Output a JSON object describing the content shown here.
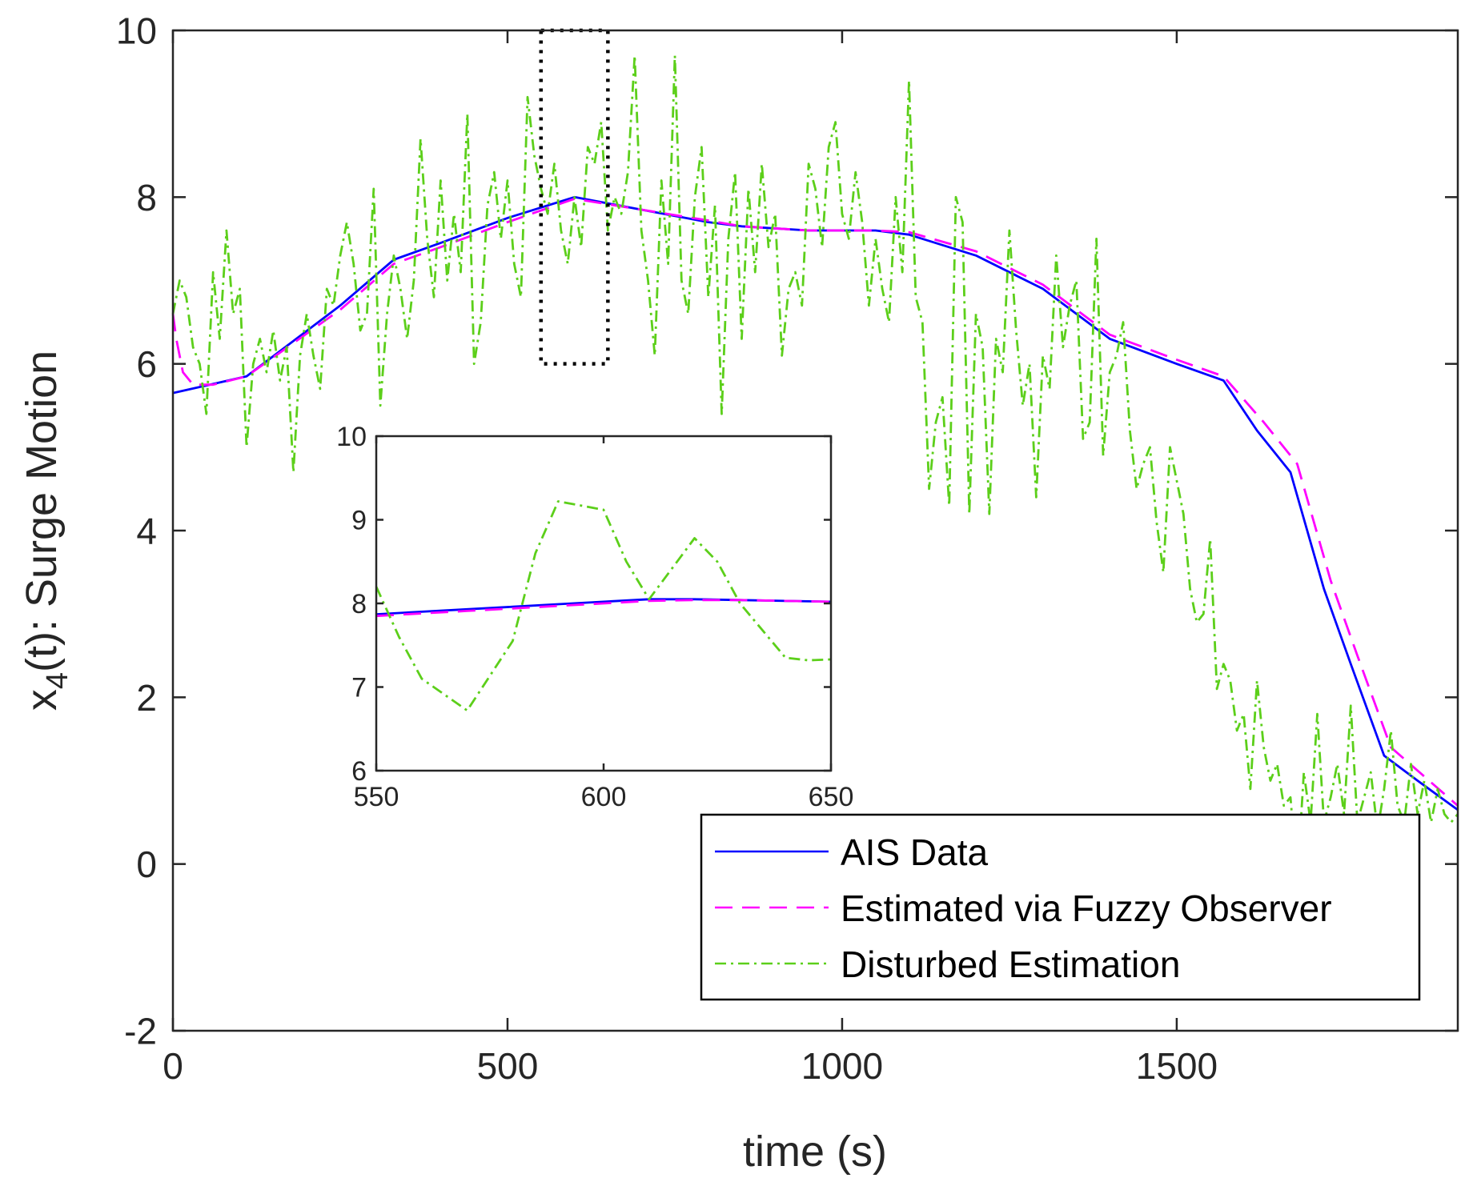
{
  "chart_data": [
    {
      "id": "main",
      "type": "line",
      "xlabel": "time (s)",
      "ylabel_main": "x",
      "ylabel_sub": "4",
      "ylabel_rest": "(t): Surge Motion",
      "xlim": [
        0,
        1920
      ],
      "ylim": [
        -2,
        10
      ],
      "xticks": [
        0,
        500,
        1000,
        1500
      ],
      "xtick_labels": [
        "0",
        "500",
        "1000",
        "1500"
      ],
      "yticks": [
        -2,
        0,
        2,
        4,
        6,
        8,
        10
      ],
      "ytick_labels": [
        "-2",
        "0",
        "2",
        "4",
        "6",
        "8",
        "10"
      ],
      "zoom_box": {
        "x": [
          550,
          650
        ],
        "y": [
          6,
          10
        ]
      },
      "legend": {
        "placement": "lower-right",
        "entries": [
          "AIS Data",
          "Estimated via Fuzzy Observer",
          "Disturbed Estimation"
        ]
      },
      "series": [
        {
          "name": "AIS Data",
          "color": "#0000ff",
          "style": "solid",
          "x": [
            0,
            110,
            250,
            330,
            400,
            500,
            600,
            700,
            800,
            850,
            950,
            1050,
            1100,
            1200,
            1300,
            1400,
            1500,
            1570,
            1620,
            1670,
            1720,
            1760,
            1810,
            1860,
            1920
          ],
          "y": [
            5.65,
            5.85,
            6.7,
            7.25,
            7.45,
            7.75,
            8.0,
            7.85,
            7.7,
            7.65,
            7.6,
            7.6,
            7.55,
            7.3,
            6.9,
            6.3,
            6.0,
            5.8,
            5.2,
            4.7,
            3.3,
            2.4,
            1.3,
            1.0,
            0.65
          ]
        },
        {
          "name": "Estimated via Fuzzy Observer",
          "color": "#ff00ff",
          "style": "dashed",
          "x": [
            0,
            5,
            15,
            30,
            60,
            110,
            250,
            330,
            400,
            500,
            600,
            700,
            800,
            850,
            950,
            1050,
            1100,
            1200,
            1300,
            1400,
            1500,
            1570,
            1630,
            1680,
            1730,
            1770,
            1820,
            1870,
            1920
          ],
          "y": [
            6.6,
            6.3,
            5.9,
            5.75,
            5.75,
            5.85,
            6.65,
            7.2,
            7.4,
            7.7,
            7.98,
            7.85,
            7.72,
            7.65,
            7.6,
            7.6,
            7.58,
            7.35,
            6.95,
            6.35,
            6.05,
            5.85,
            5.3,
            4.8,
            3.4,
            2.5,
            1.4,
            1.05,
            0.7
          ]
        },
        {
          "name": "Disturbed Estimation",
          "color": "#5ccf1a",
          "style": "dashdot",
          "x": [
            0,
            10,
            20,
            30,
            40,
            50,
            60,
            70,
            80,
            90,
            100,
            110,
            120,
            130,
            140,
            150,
            160,
            170,
            180,
            190,
            200,
            210,
            220,
            230,
            240,
            250,
            260,
            270,
            280,
            290,
            300,
            310,
            320,
            330,
            340,
            350,
            360,
            370,
            380,
            390,
            400,
            410,
            420,
            430,
            440,
            450,
            460,
            470,
            480,
            490,
            500,
            510,
            520,
            530,
            540,
            550,
            560,
            570,
            580,
            590,
            600,
            610,
            620,
            630,
            640,
            650,
            660,
            670,
            680,
            690,
            700,
            710,
            720,
            730,
            740,
            750,
            760,
            770,
            780,
            790,
            800,
            810,
            820,
            830,
            840,
            850,
            860,
            870,
            880,
            890,
            900,
            910,
            920,
            930,
            940,
            950,
            960,
            970,
            980,
            990,
            1000,
            1010,
            1020,
            1030,
            1040,
            1050,
            1060,
            1070,
            1080,
            1090,
            1100,
            1110,
            1120,
            1130,
            1140,
            1150,
            1160,
            1170,
            1180,
            1190,
            1200,
            1210,
            1220,
            1230,
            1240,
            1250,
            1260,
            1270,
            1280,
            1290,
            1300,
            1310,
            1320,
            1330,
            1340,
            1350,
            1360,
            1370,
            1380,
            1390,
            1400,
            1410,
            1420,
            1430,
            1440,
            1450,
            1460,
            1470,
            1480,
            1490,
            1500,
            1510,
            1520,
            1530,
            1540,
            1550,
            1560,
            1570,
            1580,
            1590,
            1600,
            1610,
            1620,
            1630,
            1640,
            1650,
            1660,
            1670,
            1680,
            1690,
            1700,
            1710,
            1720,
            1730,
            1740,
            1750,
            1760,
            1770,
            1780,
            1790,
            1800,
            1810,
            1820,
            1830,
            1840,
            1850,
            1860,
            1870,
            1880,
            1890,
            1900,
            1910,
            1920
          ],
          "y": [
            6.6,
            7.0,
            6.8,
            6.2,
            6.0,
            5.4,
            7.1,
            6.3,
            7.6,
            6.6,
            6.9,
            5.0,
            6.0,
            6.3,
            5.9,
            6.4,
            5.8,
            6.2,
            4.7,
            6.1,
            6.6,
            6.1,
            5.7,
            6.9,
            6.7,
            7.3,
            7.7,
            7.2,
            6.4,
            6.6,
            8.1,
            5.5,
            6.6,
            7.3,
            6.9,
            6.3,
            7.0,
            8.7,
            7.5,
            6.8,
            8.2,
            7.0,
            7.8,
            7.1,
            9.0,
            6.0,
            6.5,
            7.9,
            8.3,
            7.5,
            8.2,
            7.2,
            6.8,
            9.2,
            8.5,
            8.1,
            7.8,
            8.4,
            7.6,
            7.2,
            8.0,
            7.4,
            8.6,
            8.4,
            8.9,
            7.6,
            8.0,
            7.8,
            8.3,
            9.7,
            7.6,
            7.0,
            6.1,
            8.2,
            7.2,
            9.7,
            7.0,
            6.6,
            8.0,
            8.6,
            6.8,
            7.9,
            5.4,
            7.5,
            8.3,
            6.3,
            8.1,
            7.1,
            8.4,
            7.4,
            7.8,
            6.1,
            6.9,
            7.1,
            6.7,
            8.4,
            8.1,
            7.4,
            8.6,
            8.9,
            7.8,
            7.5,
            8.3,
            7.7,
            6.7,
            7.5,
            6.9,
            6.5,
            8.0,
            7.1,
            9.4,
            6.8,
            6.5,
            4.5,
            5.3,
            5.6,
            4.3,
            8.0,
            7.7,
            4.2,
            6.6,
            6.2,
            4.2,
            6.3,
            5.9,
            7.6,
            6.4,
            5.5,
            6.0,
            4.4,
            6.1,
            5.7,
            7.3,
            6.2,
            6.7,
            7.0,
            5.1,
            5.3,
            7.5,
            4.9,
            5.9,
            6.1,
            6.5,
            5.2,
            4.5,
            4.8,
            5.0,
            4.1,
            3.5,
            5.0,
            4.6,
            4.2,
            3.3,
            2.9,
            3.0,
            3.9,
            2.1,
            2.4,
            2.2,
            1.6,
            1.8,
            0.9,
            2.2,
            1.4,
            1.0,
            1.2,
            0.7,
            0.8,
            -0.2,
            1.1,
            0.5,
            1.8,
            0.5,
            0.8,
            1.2,
            0.6,
            1.9,
            0.5,
            0.8,
            1.1,
            0.4,
            0.9,
            1.6,
            0.7,
            0.5,
            1.2,
            0.6,
            1.0,
            0.5,
            0.9,
            0.6,
            0.5,
            0.6
          ]
        }
      ]
    },
    {
      "id": "inset",
      "type": "line",
      "xlim": [
        550,
        650
      ],
      "ylim": [
        6,
        10
      ],
      "xticks": [
        550,
        600,
        650
      ],
      "xtick_labels": [
        "550",
        "600",
        "650"
      ],
      "yticks": [
        6,
        7,
        8,
        9,
        10
      ],
      "ytick_labels": [
        "6",
        "7",
        "8",
        "9",
        "10"
      ],
      "series": [
        {
          "name": "AIS Data",
          "color": "#0000ff",
          "style": "solid",
          "x": [
            550,
            560,
            570,
            580,
            590,
            600,
            610,
            620,
            630,
            640,
            650
          ],
          "y": [
            7.87,
            7.9,
            7.93,
            7.96,
            7.99,
            8.02,
            8.05,
            8.05,
            8.04,
            8.03,
            8.02
          ]
        },
        {
          "name": "Estimated via Fuzzy Observer",
          "color": "#ff00ff",
          "style": "dashed",
          "x": [
            550,
            560,
            570,
            580,
            590,
            600,
            610,
            620,
            630,
            640,
            650
          ],
          "y": [
            7.85,
            7.88,
            7.91,
            7.94,
            7.97,
            8.0,
            8.03,
            8.04,
            8.04,
            8.03,
            8.02
          ]
        },
        {
          "name": "Disturbed Estimation",
          "color": "#5ccf1a",
          "style": "dashdot",
          "x": [
            550,
            555,
            560,
            570,
            580,
            585,
            590,
            600,
            605,
            610,
            620,
            625,
            630,
            640,
            645,
            650
          ],
          "y": [
            8.2,
            7.6,
            7.1,
            6.72,
            7.55,
            8.6,
            9.22,
            9.12,
            8.5,
            8.05,
            8.78,
            8.5,
            8.0,
            7.35,
            7.32,
            7.33
          ]
        }
      ]
    }
  ]
}
